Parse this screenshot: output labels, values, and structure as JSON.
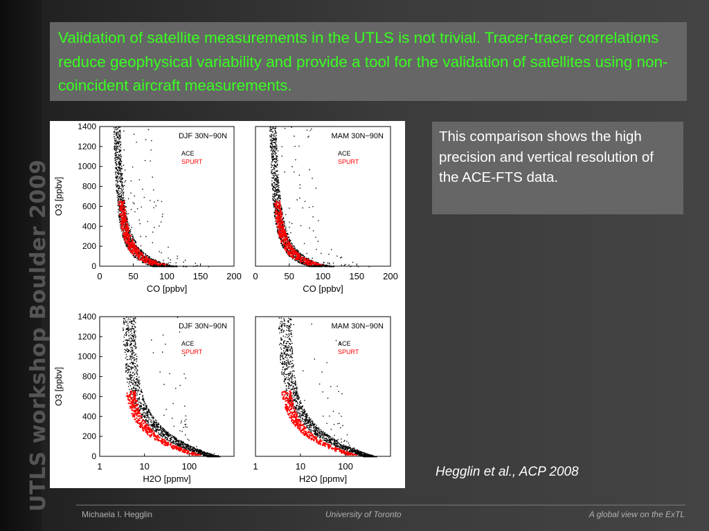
{
  "sidebar_title": "UTLS workshop Boulder 2009",
  "heading": "Validation of satellite measurements in the UTLS is not trivial. Tracer-tracer correlations reduce geophysical variability and provide a tool for the validation of satellites using non-coincident aircraft measurements.",
  "note": "This comparison shows the high precision and vertical resolution of the ACE-FTS data.",
  "citation": "Hegglin et al., ACP 2008",
  "footer": {
    "left": "Michaela I. Hegglin",
    "center": "University of Toronto",
    "right": "A global view on the ExTL"
  },
  "colors": {
    "title_text": "#39ff20",
    "ace": "#000000",
    "spurt": "#ff0000"
  },
  "chart_data": [
    {
      "type": "scatter",
      "panel": "DJF 30N−90N",
      "xlabel": "CO [ppbv]",
      "ylabel": "O3 [ppbv]",
      "xlim": [
        0,
        200
      ],
      "ylim": [
        0,
        1400
      ],
      "xticks": [
        0,
        50,
        100,
        150,
        200
      ],
      "yticks": [
        0,
        200,
        400,
        600,
        800,
        1000,
        1200,
        1400
      ],
      "legend": [
        "ACE",
        "SPURT"
      ]
    },
    {
      "type": "scatter",
      "panel": "MAM 30N−90N",
      "xlabel": "CO [ppbv]",
      "ylabel": "",
      "xlim": [
        0,
        200
      ],
      "ylim": [
        0,
        1400
      ],
      "xticks": [
        0,
        50,
        100,
        150,
        200
      ],
      "yticks": [],
      "legend": [
        "ACE",
        "SPURT"
      ]
    },
    {
      "type": "scatter",
      "panel": "DJF 30N−90N",
      "xlabel": "H2O [ppmv]",
      "ylabel": "O3 [ppbv]",
      "xscale": "log",
      "xlim": [
        1,
        1000
      ],
      "ylim": [
        0,
        1400
      ],
      "xticks": [
        1,
        10,
        100
      ],
      "yticks": [
        0,
        200,
        400,
        600,
        800,
        1000,
        1200,
        1400
      ],
      "legend": [
        "ACE",
        "SPURT"
      ]
    },
    {
      "type": "scatter",
      "panel": "MAM 30N−90N",
      "xlabel": "H2O [ppmv]",
      "ylabel": "",
      "xscale": "log",
      "xlim": [
        1,
        1000
      ],
      "ylim": [
        0,
        1400
      ],
      "xticks": [
        1,
        10,
        100
      ],
      "yticks": [],
      "legend": [
        "ACE",
        "SPURT"
      ]
    }
  ]
}
